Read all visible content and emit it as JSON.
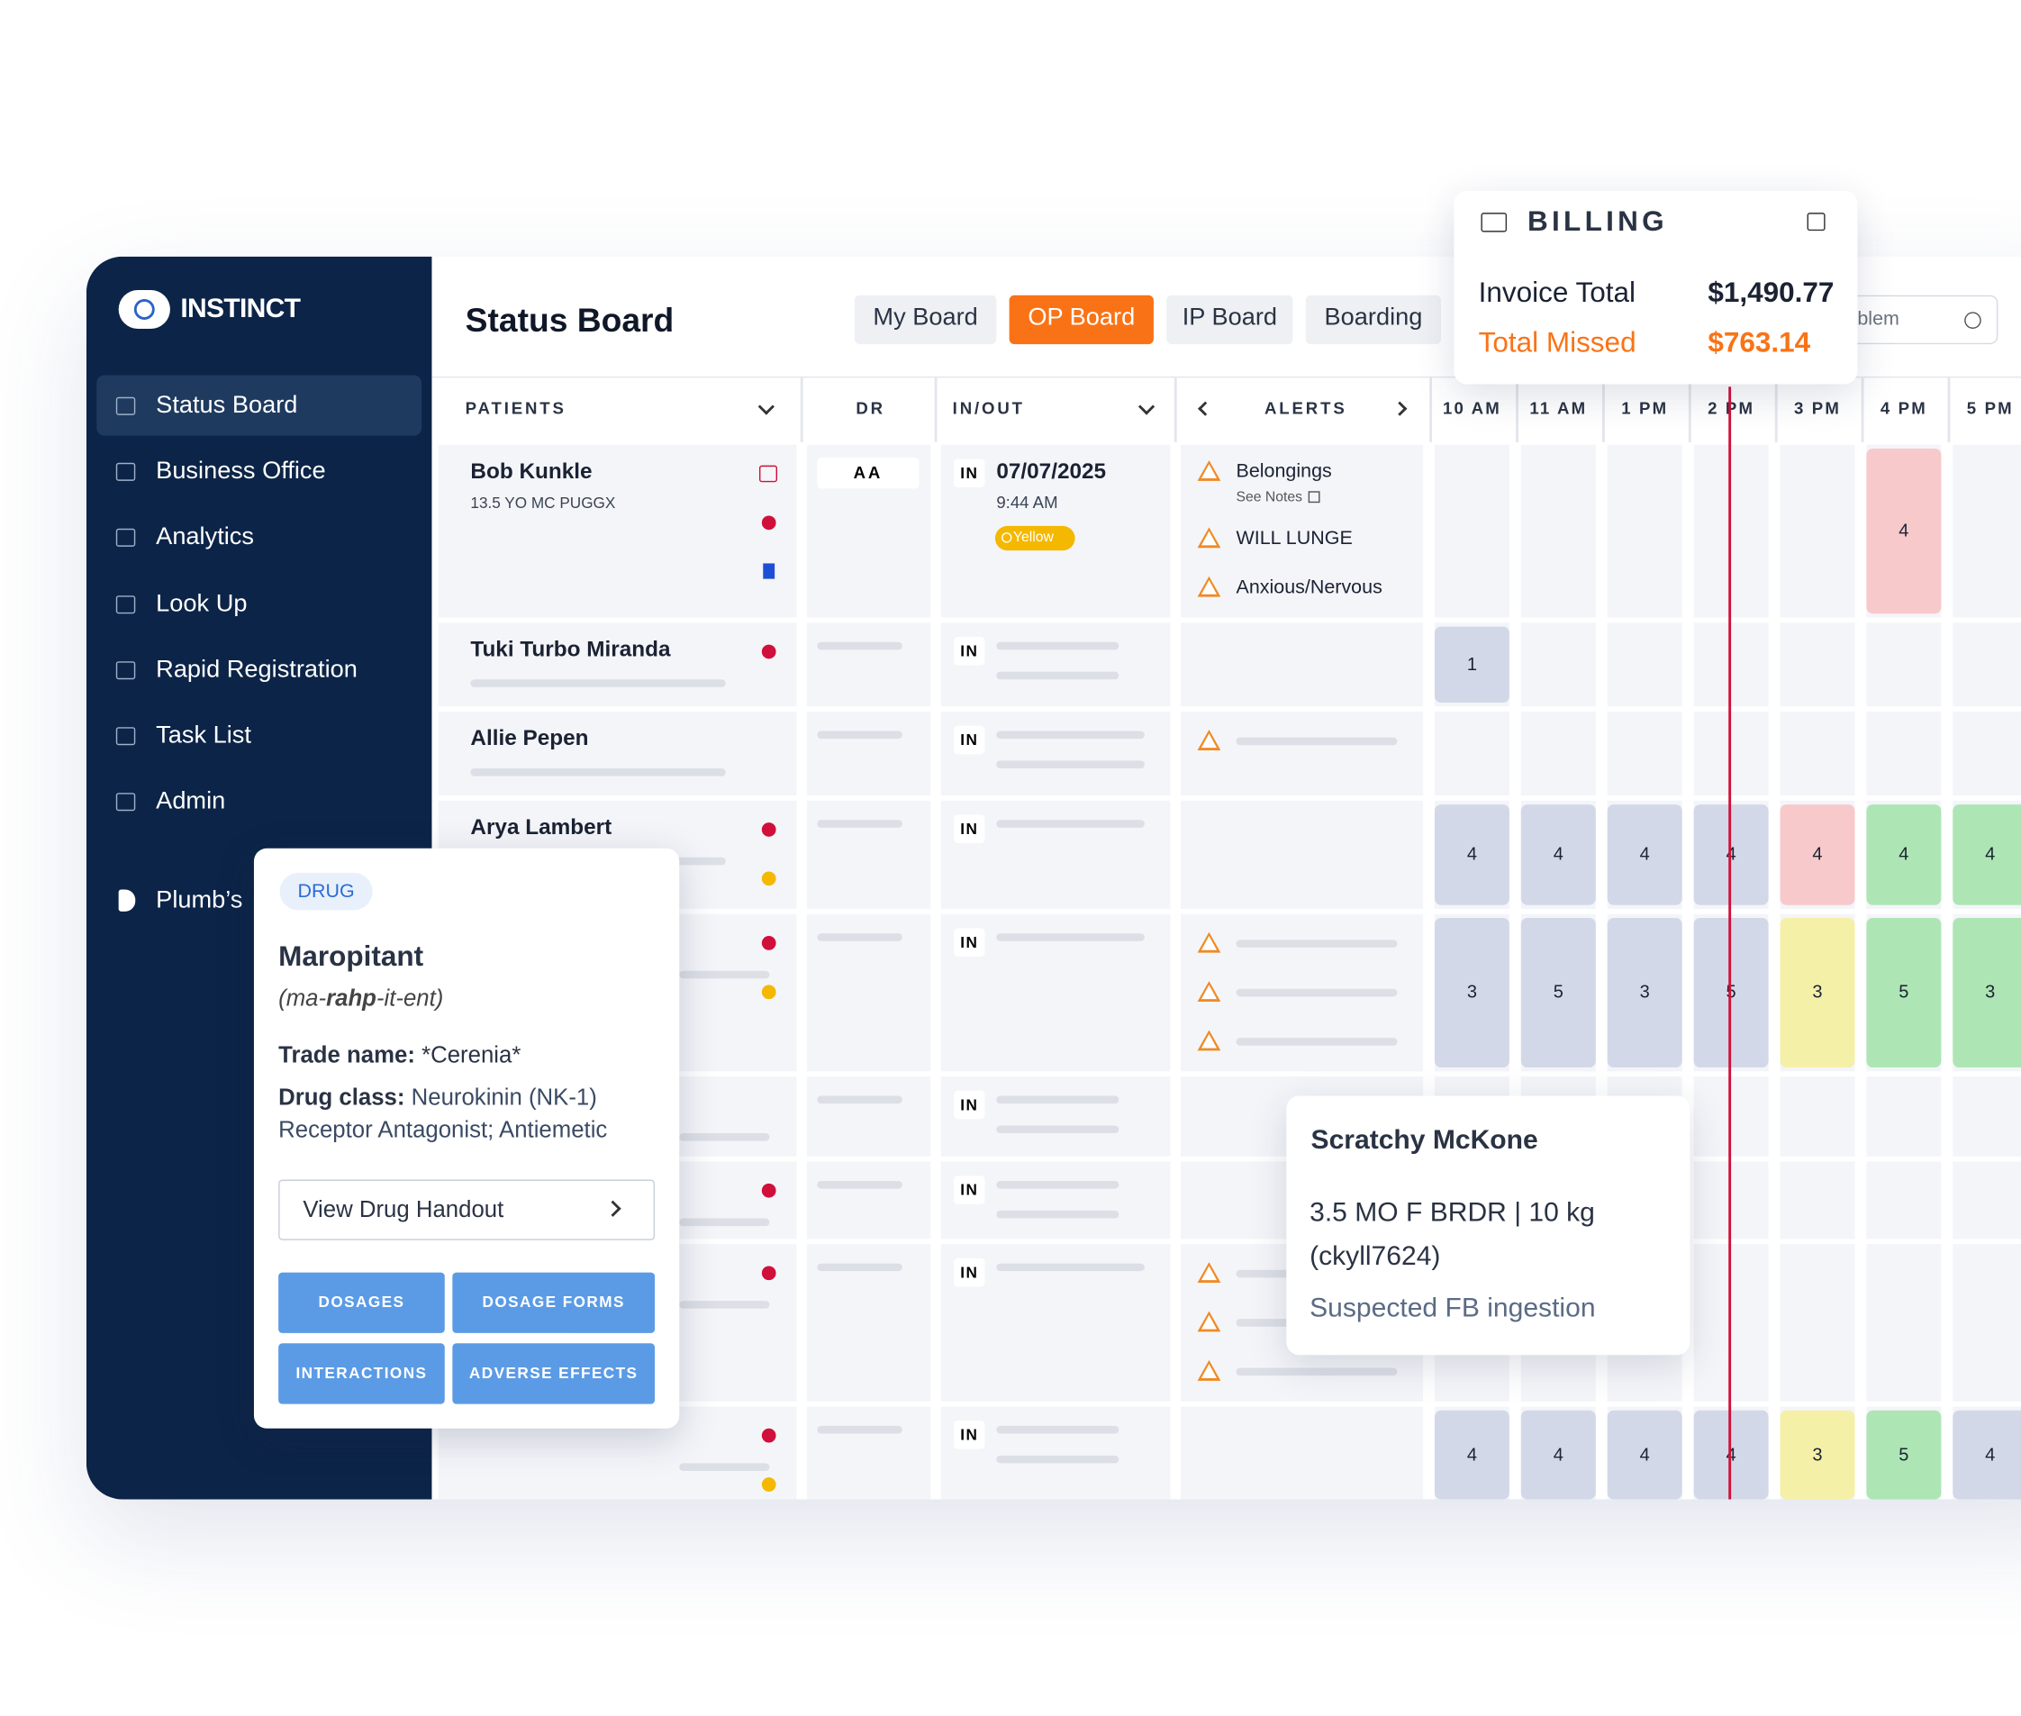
{
  "sidebar": {
    "brand": "INSTINCT",
    "active": 0,
    "items": [
      "Status Board",
      "Business Office",
      "Analytics",
      "Look Up",
      "Rapid Registration",
      "Task List",
      "Admin"
    ],
    "plumbs": "Plumb’s"
  },
  "header": {
    "title": "Status Board",
    "tabs": [
      "My Board",
      "OP Board",
      "IP Board",
      "Boarding"
    ],
    "active_tab": 1,
    "search": "blem"
  },
  "table": {
    "columns": {
      "patients": "PATIENTS",
      "dr": "DR",
      "inout": "IN/OUT",
      "alerts": "ALERTS",
      "times": [
        "10 AM",
        "11 AM",
        "1 PM",
        "2 PM",
        "3 PM",
        "4 PM",
        "5 PM"
      ]
    },
    "rows": [
      {
        "name": "Bob Kunkle",
        "details": "13.5 YO MC PUGGX",
        "dr": "AA",
        "status": "IN",
        "date": "07/07/2025",
        "time": "9:44 AM",
        "badge": "Yellow",
        "alerts": [
          {
            "text": "Belongings",
            "note": "See Notes"
          },
          {
            "text": "WILL LUNGE"
          },
          {
            "text": "Anxious/Nervous"
          }
        ],
        "timeline": [
          null,
          null,
          null,
          null,
          null,
          {
            "value": 4,
            "color": "#f7c9cb"
          },
          null
        ]
      },
      {
        "name": "Tuki Turbo Miranda",
        "status": "IN",
        "indicators": [
          "#d0103a"
        ],
        "timeline": [
          {
            "value": 1,
            "color": "#d3d8e8"
          },
          null,
          null,
          null,
          null,
          null,
          null
        ]
      },
      {
        "name": "Allie Pepen",
        "status": "IN",
        "placeholder_alerts": 1,
        "timeline": [
          null,
          null,
          null,
          null,
          null,
          null,
          null
        ]
      },
      {
        "name": "Arya Lambert",
        "status": "IN",
        "indicators": [
          "#d0103a",
          "#f5b800"
        ],
        "timeline": [
          {
            "value": 4,
            "color": "#d3d8e8"
          },
          {
            "value": 4,
            "color": "#d3d8e8"
          },
          {
            "value": 4,
            "color": "#d3d8e8"
          },
          {
            "value": 4,
            "color": "#d3d8e8"
          },
          {
            "value": 4,
            "color": "#f7c9cb"
          },
          {
            "value": 4,
            "color": "#ade6b4"
          },
          {
            "value": 4,
            "color": "#ade6b4"
          }
        ]
      },
      {
        "status": "IN",
        "indicators": [
          "#d0103a",
          "#f5b800"
        ],
        "placeholder_alerts": 3,
        "timeline": [
          {
            "value": 3,
            "color": "#d3d8e8"
          },
          {
            "value": 5,
            "color": "#d3d8e8"
          },
          {
            "value": 3,
            "color": "#d3d8e8"
          },
          {
            "value": 5,
            "color": "#d3d8e8"
          },
          {
            "value": 3,
            "color": "#f5f0a8"
          },
          {
            "value": 5,
            "color": "#ade6b4"
          },
          {
            "value": 3,
            "color": "#ade6b4"
          }
        ]
      },
      {
        "status": "IN",
        "timeline": [
          null,
          null,
          null,
          null,
          null,
          null,
          null
        ]
      },
      {
        "status": "IN",
        "indicators": [
          "#d0103a"
        ],
        "timeline": [
          null,
          null,
          null,
          null,
          null,
          null,
          null
        ]
      },
      {
        "status": "IN",
        "indicators": [
          "#d0103a"
        ],
        "placeholder_alerts": 3,
        "timeline": [
          null,
          null,
          null,
          null,
          null,
          null,
          null
        ]
      },
      {
        "status": "IN",
        "indicators": [
          "#d0103a",
          "#f5b800"
        ],
        "timeline": [
          {
            "value": 4,
            "color": "#d3d8e8"
          },
          {
            "value": 4,
            "color": "#d3d8e8"
          },
          {
            "value": 4,
            "color": "#d3d8e8"
          },
          {
            "value": 4,
            "color": "#d3d8e8"
          },
          {
            "value": 3,
            "color": "#f5f0a8"
          },
          {
            "value": 5,
            "color": "#ade6b4"
          },
          {
            "value": 4,
            "color": "#d3d8e8"
          }
        ]
      }
    ]
  },
  "billing": {
    "title": "BILLING",
    "invoice_label": "Invoice Total",
    "invoice_value": "$1,490.77",
    "missed_label": "Total Missed",
    "missed_value": "$763.14"
  },
  "drug": {
    "tag": "DRUG",
    "name": "Maropitant",
    "pronunciation": [
      "(ma-",
      "rahp",
      "-it-ent)"
    ],
    "trade_label": "Trade name:",
    "trade_value": "*Cerenia*",
    "class_label": "Drug class:",
    "class_value": "Neurokinin (NK-1) Receptor Antagonist; Antiemetic",
    "handout": "View Drug Handout",
    "buttons": [
      "DOSAGES",
      "DOSAGE FORMS",
      "INTERACTIONS",
      "ADVERSE EFFECTS"
    ]
  },
  "patient_card": {
    "name": "Scratchy McKone",
    "details": "3.5 MO F BRDR | 10 kg (ckyll7624)",
    "note": "Suspected FB ingestion"
  }
}
